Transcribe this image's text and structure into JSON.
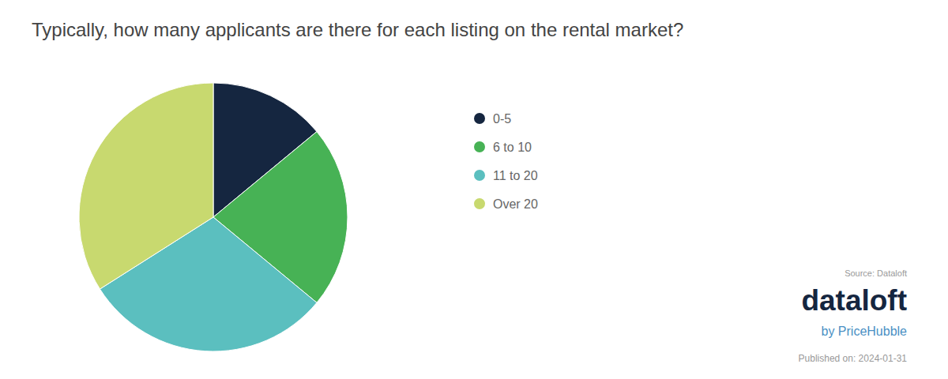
{
  "chart_data": {
    "type": "pie",
    "title": "Typically, how many applicants are there for each listing on the rental market?",
    "categories": [
      "0-5",
      "6 to 10",
      "11 to 20",
      "Over 20"
    ],
    "values": [
      14,
      22,
      30,
      34
    ],
    "colors": [
      "#152640",
      "#47b255",
      "#5bbfbf",
      "#c8d96f"
    ],
    "legend": "right",
    "annotations": [
      "Source: Dataloft",
      "dataloft",
      "by PriceHubble",
      "Published on: 2024-01-31"
    ]
  }
}
